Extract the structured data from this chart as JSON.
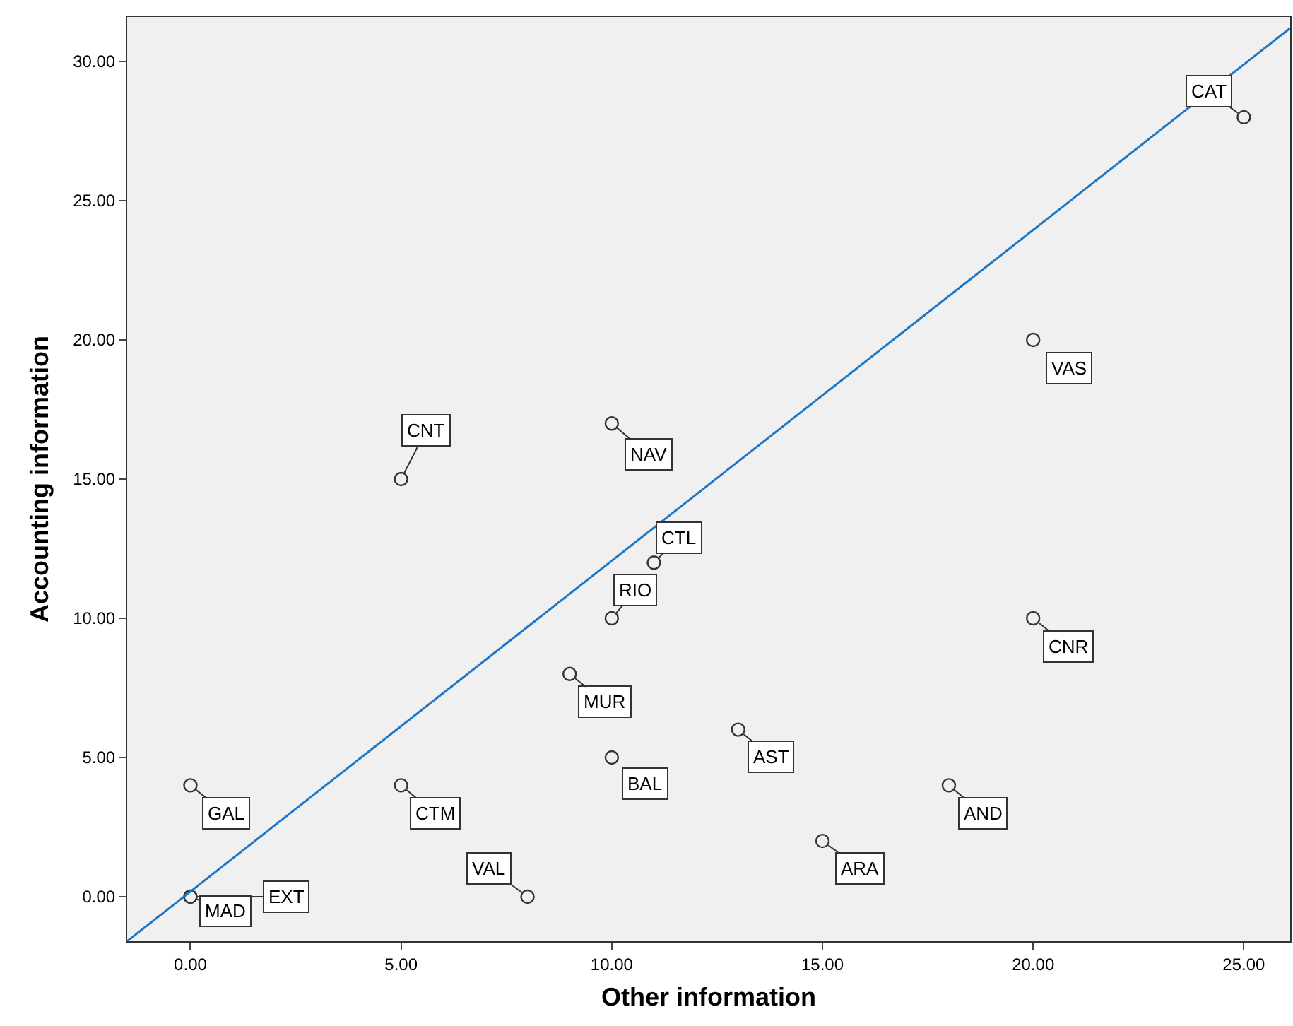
{
  "chart_data": {
    "type": "scatter",
    "xlabel": "Other information",
    "ylabel": "Accounting information",
    "xlim": [
      -1.5,
      26.1
    ],
    "ylim": [
      -1.6,
      31.6
    ],
    "xticks": [
      {
        "value": 0,
        "label": "0.00"
      },
      {
        "value": 5,
        "label": "5.00"
      },
      {
        "value": 10,
        "label": "10.00"
      },
      {
        "value": 15,
        "label": "15.00"
      },
      {
        "value": 20,
        "label": "20.00"
      },
      {
        "value": 25,
        "label": "25.00"
      }
    ],
    "yticks": [
      {
        "value": 0,
        "label": "0.00"
      },
      {
        "value": 5,
        "label": "5.00"
      },
      {
        "value": 10,
        "label": "10.00"
      },
      {
        "value": 15,
        "label": "15.00"
      },
      {
        "value": 20,
        "label": "20.00"
      },
      {
        "value": 25,
        "label": "25.00"
      },
      {
        "value": 30,
        "label": "30.00"
      }
    ],
    "grid": false,
    "marker": "circle",
    "series": [
      {
        "color": "#333333",
        "x": [
          25,
          20,
          5,
          10,
          11,
          10,
          20,
          9,
          13,
          10,
          0,
          5,
          18,
          15,
          8,
          0,
          0
        ],
        "values": [
          28,
          20,
          15,
          17,
          12,
          10,
          10,
          8,
          6,
          5,
          4,
          4,
          4,
          2,
          0,
          0,
          0
        ]
      },
      {
        "type": "line",
        "color": "#1f77c4",
        "marker": "none",
        "x": [
          -1.5,
          26.1
        ],
        "values": [
          -1.6,
          31.2
        ]
      }
    ],
    "annotations": [
      {
        "text": "CAT",
        "x": 25,
        "y": 28
      },
      {
        "text": "VAS",
        "x": 20,
        "y": 20
      },
      {
        "text": "CNT",
        "x": 5,
        "y": 15
      },
      {
        "text": "NAV",
        "x": 10,
        "y": 17
      },
      {
        "text": "CTL",
        "x": 11,
        "y": 12
      },
      {
        "text": "RIO",
        "x": 10,
        "y": 10
      },
      {
        "text": "CNR",
        "x": 20,
        "y": 10
      },
      {
        "text": "MUR",
        "x": 9,
        "y": 8
      },
      {
        "text": "AST",
        "x": 13,
        "y": 6
      },
      {
        "text": "BAL",
        "x": 10,
        "y": 5
      },
      {
        "text": "GAL",
        "x": 0,
        "y": 4
      },
      {
        "text": "CTM",
        "x": 5,
        "y": 4
      },
      {
        "text": "AND",
        "x": 18,
        "y": 4
      },
      {
        "text": "ARA",
        "x": 15,
        "y": 2
      },
      {
        "text": "VAL",
        "x": 8,
        "y": 0
      },
      {
        "text": "MAD",
        "x": 0,
        "y": 0
      },
      {
        "text": "EXT",
        "x": 0,
        "y": 0
      }
    ]
  }
}
